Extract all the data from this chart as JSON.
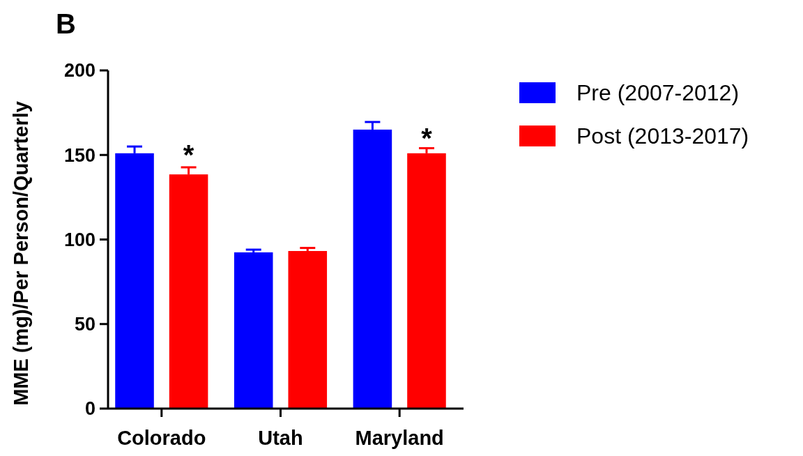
{
  "chart_data": {
    "type": "bar",
    "ylabel": "MME (mg)/Per Person/Quarterly",
    "categories": [
      "Colorado",
      "Utah",
      "Maryland"
    ],
    "series": [
      {
        "name": "Pre (2007-2012)",
        "color": "#0000ff",
        "values": [
          151,
          92.4,
          165
        ],
        "errors": [
          [
            151,
            155
          ],
          [
            92.4,
            94
          ],
          [
            165,
            169.5
          ]
        ]
      },
      {
        "name": "Post (2013-2017)",
        "color": "#ff0000",
        "values": [
          138.5,
          93.2,
          151
        ],
        "errors": [
          [
            138.5,
            142.7
          ],
          [
            93.2,
            95
          ],
          [
            151,
            154
          ]
        ]
      }
    ],
    "ylim": [
      0,
      200
    ],
    "yticks": [
      0,
      50,
      100,
      150,
      200
    ],
    "legend": "top right",
    "annotations": [
      "B",
      "*",
      "*"
    ]
  }
}
